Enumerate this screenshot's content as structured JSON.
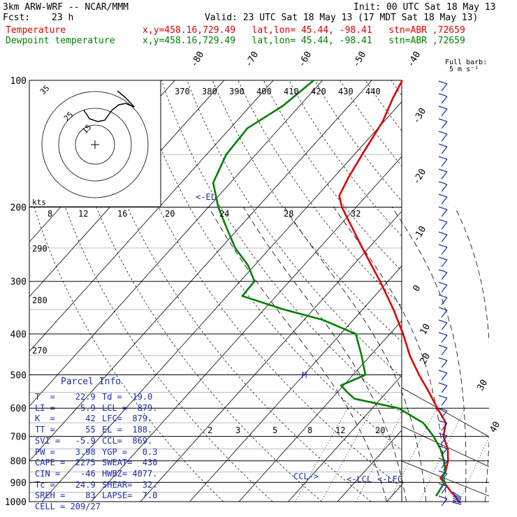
{
  "header": {
    "model": "3km ARW-WRF -- NCAR/MMM",
    "init": "Init: 00 UTC Sat 18 May 13",
    "fcst_label": "Fcst:",
    "fcst_value": "23 h",
    "valid": "Valid: 23 UTC Sat 18 May 13 (17 MDT Sat 18 May 13)",
    "temperature": {
      "label": "Temperature",
      "location": "x,y=458.16,729.49   lat,lon= 45.44, -98.41   stn=ABR ,72659",
      "color": "#e00000"
    },
    "dewpoint": {
      "label": "Dewpoint temperature",
      "location": "x,y=458.16,729.49   lat,lon= 45.44, -98.41   stn=ABR ,72659",
      "color": "#008000"
    }
  },
  "barb_legend": {
    "line1": "Full barb:",
    "line2": "5 m s⁻¹"
  },
  "hodograph": {
    "units": "kts",
    "ring_labels": [
      "35",
      "25",
      "15"
    ]
  },
  "parcel_info": {
    "title": "Parcel Info",
    "rows": [
      [
        "T  =    22.9",
        "Td =  19.0"
      ],
      [
        "LI =    -5.9",
        "LCL =  879."
      ],
      [
        "K  =      42",
        "LFC=  879."
      ],
      [
        "TT =      55",
        "EL =  188."
      ],
      [
        "SVI =   -5.9",
        "CCL=  869."
      ],
      [
        "PW =    3.98",
        "YGP =   0.3"
      ],
      [
        "CAPE =  2275",
        "SWEAT=  430"
      ],
      [
        "CIN =    -46",
        "HWBZ= 4077."
      ],
      [
        "Tc =    24.9",
        "SHEAR=  32."
      ],
      [
        "SREH =    83",
        "LAPSE=  7.0"
      ],
      [
        "CELL = 209/27",
        ""
      ]
    ]
  },
  "chart_data": {
    "type": "line",
    "title": "",
    "y_axis": {
      "label": "",
      "scale": "log",
      "range": [
        1000,
        100
      ],
      "ticks": [
        1000,
        900,
        800,
        700,
        600,
        500,
        400,
        300,
        200,
        100
      ]
    },
    "isotherm_labels": [
      "-80",
      "-70",
      "-60",
      "-50",
      "-40",
      "-30",
      "-20",
      "-10",
      "0",
      "10",
      "20",
      "30",
      "40"
    ],
    "theta_labels": [
      "370",
      "380",
      "390",
      "400",
      "410",
      "420",
      "430",
      "440"
    ],
    "theta_lower_labels": [
      "290",
      "280",
      "270"
    ],
    "mixing_ratio_labels": [
      "2",
      "3",
      "5",
      "8",
      "12",
      "20"
    ],
    "top_scale_labels": [
      "8",
      "12",
      "16",
      "20",
      "24",
      "28",
      "32"
    ],
    "annotations": {
      "el": "<-EL",
      "lcl": "<-LCL",
      "lfc": "<-LFC",
      "ccl": "CCL->",
      "m": "M"
    },
    "series": [
      {
        "name": "Temperature",
        "color": "#e00000",
        "points": [
          [
            1000,
            24.6
          ],
          [
            970,
            22.9
          ],
          [
            950,
            21.4
          ],
          [
            925,
            19.8
          ],
          [
            900,
            18.1
          ],
          [
            879,
            16.6
          ],
          [
            850,
            16.5
          ],
          [
            800,
            15.0
          ],
          [
            750,
            12.8
          ],
          [
            700,
            9.6
          ],
          [
            650,
            7.6
          ],
          [
            600,
            3.2
          ],
          [
            550,
            -1.4
          ],
          [
            500,
            -6.6
          ],
          [
            450,
            -12.0
          ],
          [
            400,
            -17.3
          ],
          [
            350,
            -23.7
          ],
          [
            300,
            -31.6
          ],
          [
            250,
            -41.3
          ],
          [
            200,
            -52.9
          ],
          [
            188,
            -55.5
          ],
          [
            170,
            -57.0
          ],
          [
            150,
            -58.4
          ],
          [
            125,
            -60.3
          ],
          [
            110,
            -62.5
          ],
          [
            100,
            -63.8
          ]
        ]
      },
      {
        "name": "Dewpoint temperature",
        "color": "#008000",
        "points": [
          [
            970,
            19.0
          ],
          [
            950,
            18.8
          ],
          [
            900,
            18.2
          ],
          [
            879,
            16.9
          ],
          [
            850,
            16.5
          ],
          [
            800,
            14.2
          ],
          [
            750,
            11.3
          ],
          [
            700,
            7.6
          ],
          [
            650,
            3.0
          ],
          [
            600,
            -4.7
          ],
          [
            570,
            -15.3
          ],
          [
            550,
            -18.0
          ],
          [
            530,
            -20.5
          ],
          [
            500,
            -17.5
          ],
          [
            450,
            -21.8
          ],
          [
            400,
            -26.9
          ],
          [
            370,
            -36.3
          ],
          [
            350,
            -45.9
          ],
          [
            325,
            -56.9
          ],
          [
            300,
            -57.1
          ],
          [
            275,
            -61.3
          ],
          [
            250,
            -67.1
          ],
          [
            225,
            -72.3
          ],
          [
            200,
            -78.0
          ],
          [
            175,
            -83.5
          ],
          [
            150,
            -86.0
          ],
          [
            130,
            -86.5
          ],
          [
            115,
            -83.4
          ],
          [
            100,
            -81.8
          ]
        ]
      }
    ]
  }
}
